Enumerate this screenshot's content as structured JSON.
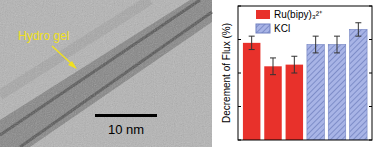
{
  "chart_data": {
    "type": "bar",
    "y_label": "Decrement of Flux (%)",
    "categories": [
      null,
      null,
      null,
      null,
      null,
      null
    ],
    "series": [
      {
        "name": "Ru(bipy)₃²⁺",
        "color": "#e8312b",
        "values": [
          58,
          44,
          45,
          null,
          null,
          null
        ],
        "errors": [
          4,
          5,
          5,
          null,
          null,
          null
        ]
      },
      {
        "name": "KCl",
        "color": "#a8b4e6",
        "values": [
          null,
          null,
          null,
          57,
          57,
          66
        ],
        "errors": [
          null,
          null,
          null,
          5,
          5,
          4
        ]
      }
    ],
    "ylim": [
      0,
      80
    ],
    "yticks": [
      0,
      20,
      40,
      60,
      80
    ],
    "tick_labels": false,
    "legend": "top",
    "grid": false
  },
  "micrograph": {
    "annotation": "Hydro gel",
    "scale_bar": "10 nm"
  }
}
